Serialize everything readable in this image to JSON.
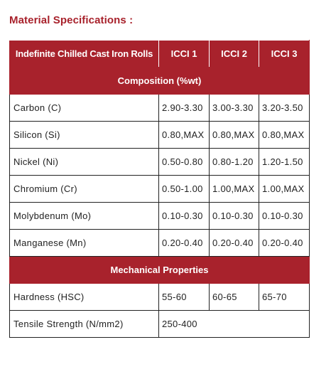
{
  "title": "Material Specifications :",
  "table": {
    "headers": [
      "Indefinite Chilled Cast Iron Rolls",
      "ICCI 1",
      "ICCI 2",
      "ICCI 3"
    ],
    "sections": {
      "composition": "Composition (%wt)",
      "mechanical": "Mechanical Properties"
    },
    "composition_rows": [
      {
        "label": "Carbon (C)",
        "v1": "2.90-3.30",
        "v2": "3.00-3.30",
        "v3": "3.20-3.50"
      },
      {
        "label": "Silicon (Si)",
        "v1": "0.80,MAX",
        "v2": "0.80,MAX",
        "v3": "0.80,MAX"
      },
      {
        "label": "Nickel (Ni)",
        "v1": "0.50-0.80",
        "v2": "0.80-1.20",
        "v3": "1.20-1.50"
      },
      {
        "label": "Chromium (Cr)",
        "v1": "0.50-1.00",
        "v2": "1.00,MAX",
        "v3": "1.00,MAX"
      },
      {
        "label": "Molybdenum (Mo)",
        "v1": "0.10-0.30",
        "v2": "0.10-0.30",
        "v3": "0.10-0.30"
      },
      {
        "label": "Manganese (Mn)",
        "v1": "0.20-0.40",
        "v2": "0.20-0.40",
        "v3": "0.20-0.40"
      }
    ],
    "hardness": {
      "label": "Hardness (HSC)",
      "v1": "55-60",
      "v2": "60-65",
      "v3": "65-70"
    },
    "tensile": {
      "label": "Tensile Strength (N/mm2)",
      "value": "250-400"
    }
  },
  "colors": {
    "accent": "#a8222c",
    "text": "#222222",
    "background": "#ffffff"
  }
}
